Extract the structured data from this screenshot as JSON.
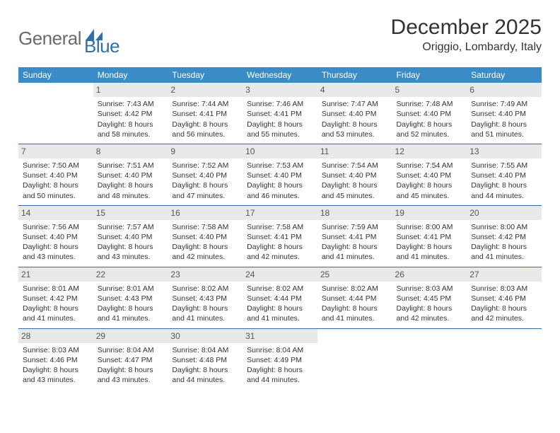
{
  "brand": {
    "part1": "General",
    "part2": "Blue"
  },
  "title": "December 2025",
  "location": "Origgio, Lombardy, Italy",
  "dow": [
    "Sunday",
    "Monday",
    "Tuesday",
    "Wednesday",
    "Thursday",
    "Friday",
    "Saturday"
  ],
  "colors": {
    "header_bg": "#3b8bc7",
    "header_text": "#ffffff",
    "rule": "#2f6fab",
    "daynum_bg": "#e9e9e9",
    "logo_gray": "#6a6a6a",
    "logo_blue": "#2f6fab"
  },
  "weeks": [
    [
      {
        "n": "",
        "sr": "",
        "ss": "",
        "d1": "",
        "d2": "",
        "empty": true
      },
      {
        "n": "1",
        "sr": "Sunrise: 7:43 AM",
        "ss": "Sunset: 4:42 PM",
        "d1": "Daylight: 8 hours",
        "d2": "and 58 minutes."
      },
      {
        "n": "2",
        "sr": "Sunrise: 7:44 AM",
        "ss": "Sunset: 4:41 PM",
        "d1": "Daylight: 8 hours",
        "d2": "and 56 minutes."
      },
      {
        "n": "3",
        "sr": "Sunrise: 7:46 AM",
        "ss": "Sunset: 4:41 PM",
        "d1": "Daylight: 8 hours",
        "d2": "and 55 minutes."
      },
      {
        "n": "4",
        "sr": "Sunrise: 7:47 AM",
        "ss": "Sunset: 4:40 PM",
        "d1": "Daylight: 8 hours",
        "d2": "and 53 minutes."
      },
      {
        "n": "5",
        "sr": "Sunrise: 7:48 AM",
        "ss": "Sunset: 4:40 PM",
        "d1": "Daylight: 8 hours",
        "d2": "and 52 minutes."
      },
      {
        "n": "6",
        "sr": "Sunrise: 7:49 AM",
        "ss": "Sunset: 4:40 PM",
        "d1": "Daylight: 8 hours",
        "d2": "and 51 minutes."
      }
    ],
    [
      {
        "n": "7",
        "sr": "Sunrise: 7:50 AM",
        "ss": "Sunset: 4:40 PM",
        "d1": "Daylight: 8 hours",
        "d2": "and 50 minutes."
      },
      {
        "n": "8",
        "sr": "Sunrise: 7:51 AM",
        "ss": "Sunset: 4:40 PM",
        "d1": "Daylight: 8 hours",
        "d2": "and 48 minutes."
      },
      {
        "n": "9",
        "sr": "Sunrise: 7:52 AM",
        "ss": "Sunset: 4:40 PM",
        "d1": "Daylight: 8 hours",
        "d2": "and 47 minutes."
      },
      {
        "n": "10",
        "sr": "Sunrise: 7:53 AM",
        "ss": "Sunset: 4:40 PM",
        "d1": "Daylight: 8 hours",
        "d2": "and 46 minutes."
      },
      {
        "n": "11",
        "sr": "Sunrise: 7:54 AM",
        "ss": "Sunset: 4:40 PM",
        "d1": "Daylight: 8 hours",
        "d2": "and 45 minutes."
      },
      {
        "n": "12",
        "sr": "Sunrise: 7:54 AM",
        "ss": "Sunset: 4:40 PM",
        "d1": "Daylight: 8 hours",
        "d2": "and 45 minutes."
      },
      {
        "n": "13",
        "sr": "Sunrise: 7:55 AM",
        "ss": "Sunset: 4:40 PM",
        "d1": "Daylight: 8 hours",
        "d2": "and 44 minutes."
      }
    ],
    [
      {
        "n": "14",
        "sr": "Sunrise: 7:56 AM",
        "ss": "Sunset: 4:40 PM",
        "d1": "Daylight: 8 hours",
        "d2": "and 43 minutes."
      },
      {
        "n": "15",
        "sr": "Sunrise: 7:57 AM",
        "ss": "Sunset: 4:40 PM",
        "d1": "Daylight: 8 hours",
        "d2": "and 43 minutes."
      },
      {
        "n": "16",
        "sr": "Sunrise: 7:58 AM",
        "ss": "Sunset: 4:40 PM",
        "d1": "Daylight: 8 hours",
        "d2": "and 42 minutes."
      },
      {
        "n": "17",
        "sr": "Sunrise: 7:58 AM",
        "ss": "Sunset: 4:41 PM",
        "d1": "Daylight: 8 hours",
        "d2": "and 42 minutes."
      },
      {
        "n": "18",
        "sr": "Sunrise: 7:59 AM",
        "ss": "Sunset: 4:41 PM",
        "d1": "Daylight: 8 hours",
        "d2": "and 41 minutes."
      },
      {
        "n": "19",
        "sr": "Sunrise: 8:00 AM",
        "ss": "Sunset: 4:41 PM",
        "d1": "Daylight: 8 hours",
        "d2": "and 41 minutes."
      },
      {
        "n": "20",
        "sr": "Sunrise: 8:00 AM",
        "ss": "Sunset: 4:42 PM",
        "d1": "Daylight: 8 hours",
        "d2": "and 41 minutes."
      }
    ],
    [
      {
        "n": "21",
        "sr": "Sunrise: 8:01 AM",
        "ss": "Sunset: 4:42 PM",
        "d1": "Daylight: 8 hours",
        "d2": "and 41 minutes."
      },
      {
        "n": "22",
        "sr": "Sunrise: 8:01 AM",
        "ss": "Sunset: 4:43 PM",
        "d1": "Daylight: 8 hours",
        "d2": "and 41 minutes."
      },
      {
        "n": "23",
        "sr": "Sunrise: 8:02 AM",
        "ss": "Sunset: 4:43 PM",
        "d1": "Daylight: 8 hours",
        "d2": "and 41 minutes."
      },
      {
        "n": "24",
        "sr": "Sunrise: 8:02 AM",
        "ss": "Sunset: 4:44 PM",
        "d1": "Daylight: 8 hours",
        "d2": "and 41 minutes."
      },
      {
        "n": "25",
        "sr": "Sunrise: 8:02 AM",
        "ss": "Sunset: 4:44 PM",
        "d1": "Daylight: 8 hours",
        "d2": "and 41 minutes."
      },
      {
        "n": "26",
        "sr": "Sunrise: 8:03 AM",
        "ss": "Sunset: 4:45 PM",
        "d1": "Daylight: 8 hours",
        "d2": "and 42 minutes."
      },
      {
        "n": "27",
        "sr": "Sunrise: 8:03 AM",
        "ss": "Sunset: 4:46 PM",
        "d1": "Daylight: 8 hours",
        "d2": "and 42 minutes."
      }
    ],
    [
      {
        "n": "28",
        "sr": "Sunrise: 8:03 AM",
        "ss": "Sunset: 4:46 PM",
        "d1": "Daylight: 8 hours",
        "d2": "and 43 minutes."
      },
      {
        "n": "29",
        "sr": "Sunrise: 8:04 AM",
        "ss": "Sunset: 4:47 PM",
        "d1": "Daylight: 8 hours",
        "d2": "and 43 minutes."
      },
      {
        "n": "30",
        "sr": "Sunrise: 8:04 AM",
        "ss": "Sunset: 4:48 PM",
        "d1": "Daylight: 8 hours",
        "d2": "and 44 minutes."
      },
      {
        "n": "31",
        "sr": "Sunrise: 8:04 AM",
        "ss": "Sunset: 4:49 PM",
        "d1": "Daylight: 8 hours",
        "d2": "and 44 minutes."
      },
      {
        "n": "",
        "sr": "",
        "ss": "",
        "d1": "",
        "d2": "",
        "empty": true
      },
      {
        "n": "",
        "sr": "",
        "ss": "",
        "d1": "",
        "d2": "",
        "empty": true
      },
      {
        "n": "",
        "sr": "",
        "ss": "",
        "d1": "",
        "d2": "",
        "empty": true
      }
    ]
  ]
}
